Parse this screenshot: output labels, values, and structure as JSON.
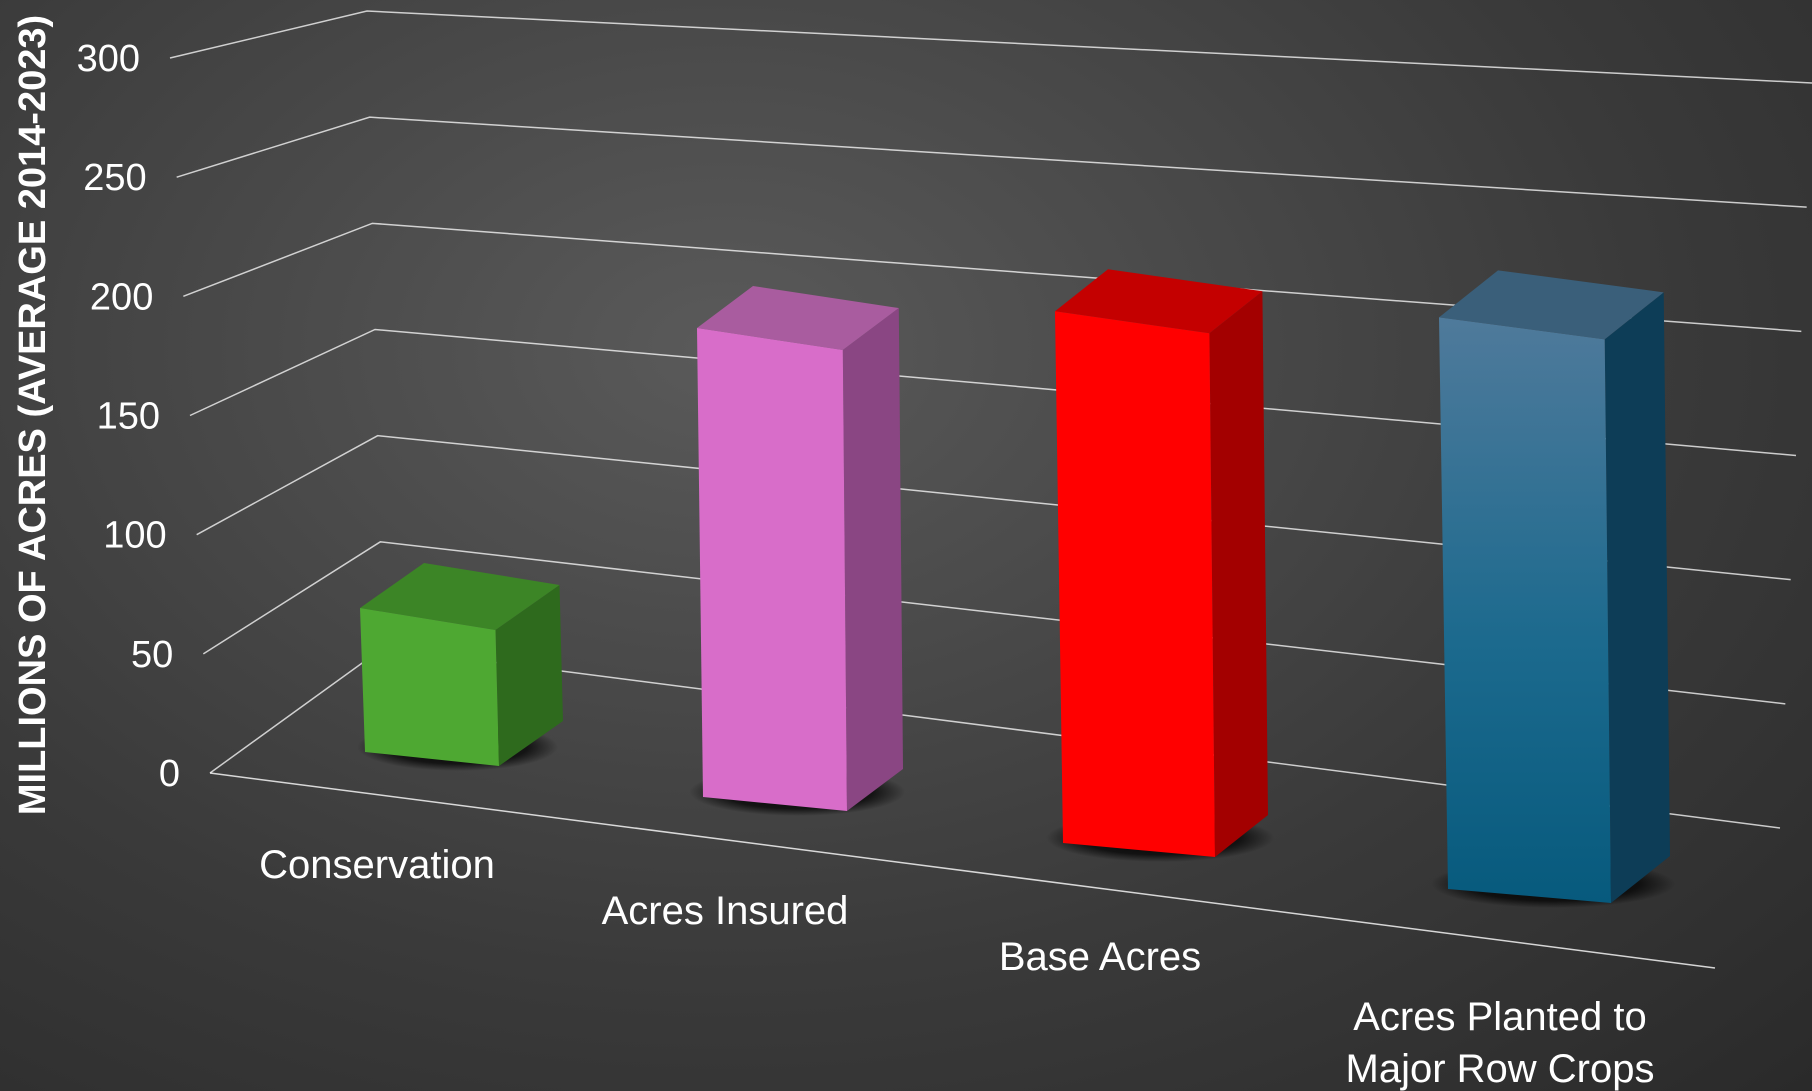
{
  "chart_data": {
    "type": "bar",
    "style": "3d-column",
    "title": "",
    "xlabel": "",
    "ylabel": "MILLIONS OF ACRES (AVERAGE 2014-2023)",
    "ylim": [
      0,
      300
    ],
    "yticks": [
      "0",
      "50",
      "100",
      "150",
      "200",
      "250",
      "300"
    ],
    "grid": true,
    "legend": "none",
    "categories": [
      {
        "label": "Conservation",
        "lines": [
          "Conservation"
        ],
        "value": 64
      },
      {
        "label": "Acres Insured",
        "lines": [
          "Acres Insured"
        ],
        "value": 226
      },
      {
        "label": "Base Acres",
        "lines": [
          "Base Acres"
        ],
        "value": 260
      },
      {
        "label": "Acres Planted to Major Row Crops",
        "lines": [
          "Acres Planted to",
          "Major Row Crops"
        ],
        "value": 283
      }
    ],
    "values": [
      64,
      226,
      260,
      283
    ],
    "colors": {
      "Conservation": {
        "front": "#4ea832",
        "side": "#2e6a1d",
        "top": "#3c8526"
      },
      "Acres Insured": {
        "front": "#d86dc9",
        "side": "#8a4683",
        "top": "#a95c9f"
      },
      "Base Acres": {
        "front": "#ff0000",
        "side": "#a30000",
        "top": "#c40000"
      },
      "Acres Planted to Major Row Crops": {
        "front": "#1c6a8e",
        "frontTop": "#4f7a9b",
        "side": "#0d3d57",
        "top": "#3a5f7a"
      }
    },
    "background": "#3a3a3a",
    "gridline_color": "#ffffff"
  }
}
